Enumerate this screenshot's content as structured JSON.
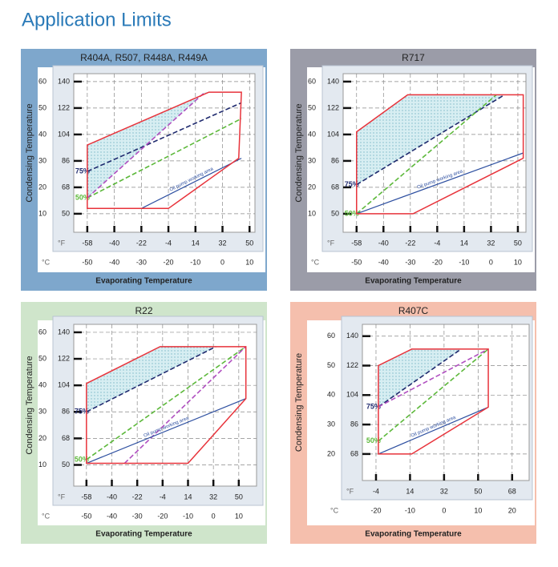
{
  "title": "Application Limits",
  "chart_data": [
    {
      "type": "envelope",
      "title": "R404A, R507, R448A, R449A",
      "panel_color": "#7ea7cc",
      "x_label": "Evaporating Temperature",
      "y_label": "Condensing Temperature",
      "x_unit": "°C",
      "x2_unit": "°F",
      "xlim": [
        -55,
        12
      ],
      "x2lim": [
        -67,
        53.6
      ],
      "ylim": [
        3,
        63
      ],
      "y2lim": [
        37.4,
        145.4
      ],
      "xticks": [
        -50,
        -40,
        -30,
        -20,
        -10,
        0,
        10
      ],
      "x2ticks": [
        -58,
        -40,
        -22,
        -4,
        14,
        32,
        50
      ],
      "yticks": [
        10,
        20,
        30,
        40,
        50,
        60
      ],
      "y2ticks": [
        50,
        68,
        86,
        104,
        122,
        140
      ],
      "grid": true,
      "envelope": {
        "color": "#e8333b",
        "x": [
          -50,
          -20,
          6,
          7,
          -5,
          -50
        ],
        "y": [
          12,
          12,
          31,
          56,
          56,
          36
        ]
      },
      "shaded": {
        "color": "#bfe3ea",
        "x": [
          -50,
          -50,
          -5,
          -6.5
        ],
        "y": [
          16,
          36,
          56,
          56
        ]
      },
      "series": [
        {
          "name": "75%",
          "color": "#1f2a6e",
          "dashed": true,
          "x": [
            -50,
            7
          ],
          "y": [
            26,
            52
          ]
        },
        {
          "name": "50%",
          "color": "#5cb83a",
          "dashed": true,
          "x": [
            -50,
            7
          ],
          "y": [
            16,
            46
          ]
        },
        {
          "color": "#b04fc0",
          "dashed": true,
          "x": [
            -50,
            -6.5
          ],
          "y": [
            16,
            56
          ]
        },
        {
          "name": "Oil pump working area",
          "color": "#2d4fa0",
          "x": [
            -30,
            7
          ],
          "y": [
            12,
            31
          ]
        }
      ]
    },
    {
      "type": "envelope",
      "title": "R717",
      "panel_color": "#9b9ca8",
      "x_label": "Evaporating Temperature",
      "y_label": "Condensing Temperature",
      "x_unit": "°C",
      "x2_unit": "°F",
      "xlim": [
        -55,
        13
      ],
      "x2lim": [
        -67,
        55.4
      ],
      "ylim": [
        3,
        63
      ],
      "y2lim": [
        37.4,
        145.4
      ],
      "xticks": [
        -50,
        -40,
        -30,
        -20,
        -10,
        0,
        10
      ],
      "x2ticks": [
        -58,
        -40,
        -22,
        -4,
        14,
        32,
        50
      ],
      "yticks": [
        10,
        20,
        30,
        40,
        50,
        60
      ],
      "y2ticks": [
        50,
        68,
        86,
        104,
        122,
        140
      ],
      "grid": true,
      "envelope": {
        "color": "#e8333b",
        "x": [
          -50,
          -31,
          12,
          12,
          -29,
          -50
        ],
        "y": [
          41,
          55,
          55,
          31,
          10,
          10
        ]
      },
      "shaded": {
        "color": "#bfe3ea",
        "x": [
          -50,
          -50,
          -31,
          5
        ],
        "y": [
          21,
          41,
          55,
          55
        ]
      },
      "series": [
        {
          "name": "75%",
          "color": "#1f2a6e",
          "dashed": true,
          "x": [
            -50,
            5
          ],
          "y": [
            21,
            55
          ]
        },
        {
          "name": "50%",
          "color": "#5cb83a",
          "dashed": true,
          "x": [
            -50,
            2
          ],
          "y": [
            10,
            55
          ]
        },
        {
          "name": "Oil pump working area",
          "color": "#2d4fa0",
          "x": [
            -50,
            12
          ],
          "y": [
            10,
            33
          ]
        }
      ]
    },
    {
      "type": "envelope",
      "title": "R22",
      "panel_color": "#cfe5cb",
      "x_label": "Evaporating Temperature",
      "y_label": "Condensing Temperature",
      "x_unit": "°C",
      "x2_unit": "°F",
      "xlim": [
        -55,
        17
      ],
      "x2lim": [
        -67,
        62.6
      ],
      "ylim": [
        2,
        63
      ],
      "y2lim": [
        35.6,
        145.4
      ],
      "xticks": [
        -50,
        -40,
        -30,
        -20,
        -10,
        0,
        10
      ],
      "x2ticks": [
        -58,
        -40,
        -22,
        -4,
        14,
        32,
        50
      ],
      "yticks": [
        10,
        20,
        30,
        40,
        50,
        60
      ],
      "y2ticks": [
        50,
        68,
        86,
        104,
        122,
        140
      ],
      "grid": true,
      "envelope": {
        "color": "#e8333b",
        "x": [
          -50,
          -10,
          12.8,
          12.8,
          -21,
          -50
        ],
        "y": [
          10.6,
          10.6,
          35,
          54.6,
          54.6,
          40.7
        ]
      },
      "shaded": {
        "color": "#bfe3ea",
        "x": [
          -50,
          -50,
          -21,
          1
        ],
        "y": [
          30,
          40.7,
          54.6,
          54.6
        ]
      },
      "series": [
        {
          "name": "75%",
          "color": "#1f2a6e",
          "dashed": true,
          "x": [
            -50,
            1
          ],
          "y": [
            30,
            54.6
          ]
        },
        {
          "name": "50%",
          "color": "#5cb83a",
          "dashed": true,
          "x": [
            -50,
            12.8
          ],
          "y": [
            12,
            54.6
          ]
        },
        {
          "color": "#b04fc0",
          "dashed": true,
          "x": [
            -35,
            12.8
          ],
          "y": [
            10.6,
            54.6
          ]
        },
        {
          "name": "Oil pump working area",
          "color": "#2d4fa0",
          "x": [
            -50,
            12.8
          ],
          "y": [
            10.6,
            35
          ]
        }
      ]
    },
    {
      "type": "envelope",
      "title": "R407C",
      "panel_color": "#f5bfad",
      "x_label": "Evaporating Temperature",
      "y_label": "Condensing Temperature",
      "x_unit": "°C",
      "x2_unit": "°F",
      "xlim": [
        -24,
        25
      ],
      "x2lim": [
        -11.2,
        77
      ],
      "ylim": [
        11,
        64
      ],
      "y2lim": [
        51.8,
        147.2
      ],
      "xticks": [
        -20,
        -10,
        0,
        10,
        20
      ],
      "x2ticks": [
        -4,
        14,
        32,
        50,
        68
      ],
      "yticks": [
        20,
        30,
        40,
        50,
        60
      ],
      "y2ticks": [
        68,
        86,
        104,
        122,
        140
      ],
      "grid": true,
      "envelope": {
        "color": "#e8333b",
        "x": [
          -19.3,
          -9.5,
          13,
          13,
          -9.5,
          -19.3
        ],
        "y": [
          20,
          20,
          35.9,
          55.6,
          55.6,
          50
        ]
      },
      "shaded": {
        "color": "#bfe3ea",
        "x": [
          -19.3,
          -19.3,
          -9.5,
          5
        ],
        "y": [
          36,
          50,
          55.6,
          55.6
        ]
      },
      "series": [
        {
          "name": "75%",
          "color": "#1f2a6e",
          "dashed": true,
          "x": [
            -19.3,
            5
          ],
          "y": [
            36,
            55.6
          ]
        },
        {
          "name": "50%",
          "color": "#5cb83a",
          "dashed": true,
          "x": [
            -19.3,
            13
          ],
          "y": [
            24.4,
            55.6
          ]
        },
        {
          "color": "#b04fc0",
          "dashed": true,
          "x": [
            -19.3,
            13
          ],
          "y": [
            36,
            55.6
          ]
        },
        {
          "name": "Oil pump working area",
          "color": "#2d4fa0",
          "x": [
            -19.3,
            13
          ],
          "y": [
            20,
            35.9
          ]
        }
      ]
    }
  ]
}
